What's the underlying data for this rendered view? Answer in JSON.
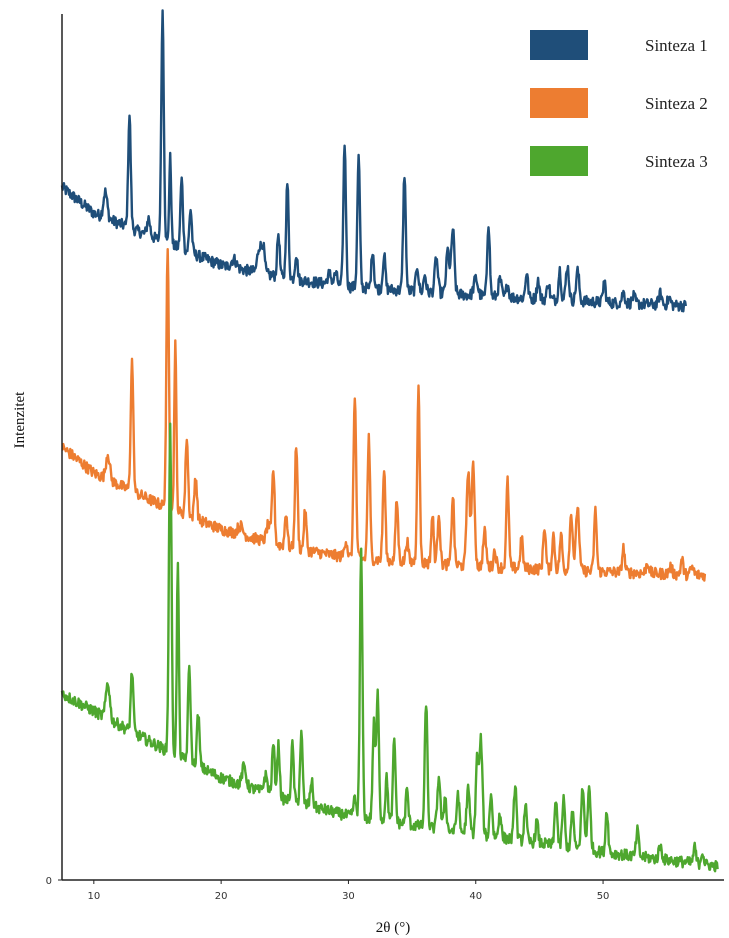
{
  "chart_data": {
    "type": "line",
    "title": "",
    "xlabel": "2θ (°)",
    "ylabel": "Intenzitet",
    "xlim": [
      7.5,
      59.5
    ],
    "x_ticks": [
      10,
      20,
      30,
      40,
      50
    ],
    "y_ticks": [
      0
    ],
    "ylim": [
      0,
      100
    ],
    "grid": false,
    "legend": "top-right",
    "series": [
      {
        "name": "Sinteza 1",
        "color": "#1f4e79",
        "x_start": 7.5,
        "x_end": 56.5,
        "baseline": [
          [
            7.5,
            80
          ],
          [
            10,
            77
          ],
          [
            15,
            74
          ],
          [
            20,
            71
          ],
          [
            25,
            69.5
          ],
          [
            30,
            68.5
          ],
          [
            40,
            67.5
          ],
          [
            50,
            66.7
          ],
          [
            56.5,
            66.3
          ]
        ],
        "peaks": [
          [
            10.9,
            3,
            0.15
          ],
          [
            12.8,
            13,
            0.1
          ],
          [
            14.3,
            2,
            0.12
          ],
          [
            15.4,
            26.5,
            0.1
          ],
          [
            16.0,
            10,
            0.08
          ],
          [
            16.9,
            8,
            0.1
          ],
          [
            17.6,
            5,
            0.1
          ],
          [
            21.0,
            1,
            0.2
          ],
          [
            23.0,
            3,
            0.15
          ],
          [
            23.3,
            3,
            0.12
          ],
          [
            24.5,
            5,
            0.1
          ],
          [
            25.2,
            11,
            0.1
          ],
          [
            25.9,
            3,
            0.1
          ],
          [
            28.5,
            1.2,
            0.15
          ],
          [
            29.0,
            1.3,
            0.12
          ],
          [
            29.7,
            16.5,
            0.1
          ],
          [
            30.8,
            15,
            0.1
          ],
          [
            31.9,
            4.5,
            0.1
          ],
          [
            32.8,
            4,
            0.1
          ],
          [
            34.4,
            13.5,
            0.1
          ],
          [
            35.4,
            3,
            0.1
          ],
          [
            36.0,
            2,
            0.1
          ],
          [
            36.9,
            4,
            0.12
          ],
          [
            37.8,
            5,
            0.12
          ],
          [
            38.2,
            7.5,
            0.12
          ],
          [
            40.0,
            2,
            0.15
          ],
          [
            41.0,
            8.5,
            0.1
          ],
          [
            41.9,
            2,
            0.12
          ],
          [
            42.5,
            1.5,
            0.1
          ],
          [
            44.0,
            3,
            0.1
          ],
          [
            44.9,
            2.2,
            0.1
          ],
          [
            45.7,
            2,
            0.1
          ],
          [
            46.6,
            3.5,
            0.1
          ],
          [
            47.2,
            4,
            0.12
          ],
          [
            48.0,
            3.5,
            0.12
          ],
          [
            50.1,
            2.5,
            0.1
          ],
          [
            51.6,
            1.2,
            0.12
          ],
          [
            52.4,
            0.8,
            0.12
          ],
          [
            54.5,
            1.3,
            0.12
          ],
          [
            55.2,
            0.8,
            0.12
          ]
        ]
      },
      {
        "name": "Sinteza 2",
        "color": "#ed7d31",
        "x_start": 7.5,
        "x_end": 58.0,
        "baseline": [
          [
            7.5,
            50
          ],
          [
            10,
            47
          ],
          [
            15,
            43.5
          ],
          [
            20,
            40.5
          ],
          [
            25,
            38.5
          ],
          [
            30,
            37.2
          ],
          [
            40,
            36.2
          ],
          [
            50,
            35.6
          ],
          [
            58,
            35.2
          ]
        ],
        "peaks": [
          [
            11.1,
            3,
            0.15
          ],
          [
            13.0,
            15,
            0.1
          ],
          [
            15.8,
            29.5,
            0.1
          ],
          [
            16.4,
            19.5,
            0.08
          ],
          [
            17.3,
            9,
            0.1
          ],
          [
            18.0,
            5,
            0.1
          ],
          [
            21.5,
            1,
            0.2
          ],
          [
            23.7,
            2,
            0.15
          ],
          [
            24.1,
            8.5,
            0.1
          ],
          [
            25.1,
            4,
            0.1
          ],
          [
            25.9,
            12,
            0.1
          ],
          [
            26.6,
            4.5,
            0.1
          ],
          [
            29.8,
            2,
            0.12
          ],
          [
            30.5,
            19,
            0.1
          ],
          [
            31.6,
            14,
            0.1
          ],
          [
            32.8,
            10.5,
            0.1
          ],
          [
            33.8,
            7,
            0.1
          ],
          [
            34.6,
            2.5,
            0.1
          ],
          [
            35.5,
            20,
            0.1
          ],
          [
            36.6,
            5.5,
            0.1
          ],
          [
            37.1,
            6,
            0.1
          ],
          [
            38.2,
            8,
            0.1
          ],
          [
            39.4,
            11,
            0.12
          ],
          [
            39.8,
            11.5,
            0.12
          ],
          [
            40.7,
            4,
            0.12
          ],
          [
            41.5,
            2,
            0.1
          ],
          [
            42.5,
            10,
            0.1
          ],
          [
            43.6,
            3.5,
            0.1
          ],
          [
            45.4,
            5,
            0.1
          ],
          [
            46.1,
            4,
            0.1
          ],
          [
            46.7,
            4,
            0.1
          ],
          [
            47.5,
            6.5,
            0.12
          ],
          [
            48.0,
            7.5,
            0.12
          ],
          [
            49.4,
            7,
            0.1
          ],
          [
            51.6,
            2.8,
            0.1
          ],
          [
            53.5,
            1.2,
            0.12
          ],
          [
            55.3,
            0.8,
            0.12
          ],
          [
            56.2,
            1.7,
            0.1
          ],
          [
            57.0,
            0.8,
            0.12
          ]
        ]
      },
      {
        "name": "Sinteza 3",
        "color": "#4ea72e",
        "x_start": 7.5,
        "x_end": 59.0,
        "baseline": [
          [
            7.5,
            21.5
          ],
          [
            10,
            19.5
          ],
          [
            15,
            15.5
          ],
          [
            20,
            11.8
          ],
          [
            25,
            9.3
          ],
          [
            30,
            7.4
          ],
          [
            40,
            5.3
          ],
          [
            50,
            3.2
          ],
          [
            59,
            1.6
          ]
        ],
        "peaks": [
          [
            11.1,
            4.2,
            0.15
          ],
          [
            13.0,
            7,
            0.1
          ],
          [
            16.0,
            37.5,
            0.1
          ],
          [
            16.6,
            22,
            0.08
          ],
          [
            17.5,
            11,
            0.1
          ],
          [
            18.2,
            6,
            0.1
          ],
          [
            21.8,
            2.2,
            0.15
          ],
          [
            23.5,
            2,
            0.15
          ],
          [
            24.1,
            6,
            0.1
          ],
          [
            24.5,
            6,
            0.1
          ],
          [
            25.6,
            6.5,
            0.1
          ],
          [
            26.3,
            8,
            0.1
          ],
          [
            27.1,
            3,
            0.1
          ],
          [
            30.5,
            2,
            0.12
          ],
          [
            31.0,
            30.5,
            0.1
          ],
          [
            32.0,
            11,
            0.1
          ],
          [
            32.3,
            14.5,
            0.1
          ],
          [
            33.0,
            5,
            0.1
          ],
          [
            33.6,
            9.5,
            0.1
          ],
          [
            34.6,
            4,
            0.1
          ],
          [
            36.1,
            14.5,
            0.1
          ],
          [
            37.1,
            6,
            0.12
          ],
          [
            37.6,
            4,
            0.1
          ],
          [
            38.6,
            4.5,
            0.1
          ],
          [
            39.4,
            5,
            0.12
          ],
          [
            40.1,
            8.5,
            0.1
          ],
          [
            40.4,
            11,
            0.12
          ],
          [
            41.2,
            5,
            0.1
          ],
          [
            41.9,
            3,
            0.1
          ],
          [
            43.1,
            6.5,
            0.1
          ],
          [
            43.9,
            4.2,
            0.1
          ],
          [
            44.8,
            2.5,
            0.1
          ],
          [
            46.3,
            5.5,
            0.1
          ],
          [
            46.9,
            5.5,
            0.1
          ],
          [
            47.6,
            4.5,
            0.1
          ],
          [
            48.4,
            7,
            0.12
          ],
          [
            48.9,
            7,
            0.12
          ],
          [
            50.3,
            5,
            0.1
          ],
          [
            52.7,
            3,
            0.1
          ],
          [
            54.5,
            1.5,
            0.12
          ],
          [
            57.2,
            1.8,
            0.1
          ],
          [
            57.8,
            1.5,
            0.1
          ]
        ]
      }
    ]
  }
}
